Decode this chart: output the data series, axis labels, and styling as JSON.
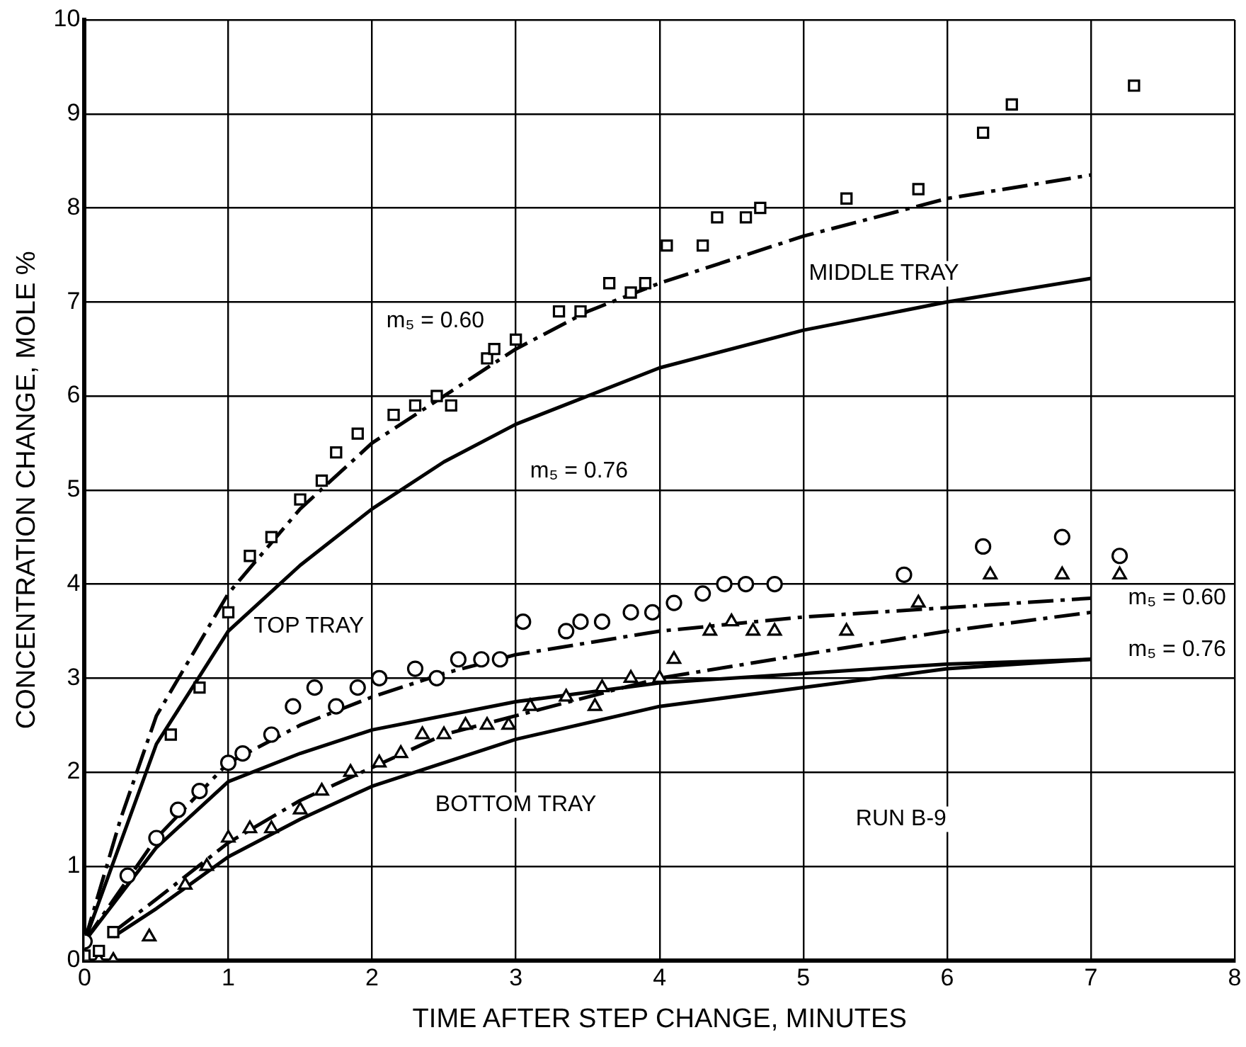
{
  "chart_data": {
    "type": "scatter",
    "xlabel": "TIME AFTER STEP CHANGE, MINUTES",
    "ylabel": "CONCENTRATION CHANGE, MOLE %",
    "xlim": [
      0,
      8
    ],
    "xticks": [
      0,
      1,
      2,
      3,
      4,
      5,
      6,
      7,
      8
    ],
    "ylim": [
      0,
      10
    ],
    "yticks": [
      0,
      1,
      2,
      3,
      4,
      5,
      6,
      7,
      8,
      9,
      10
    ],
    "grid": true,
    "legend": false,
    "series": [
      {
        "marker": "square",
        "color": "#000000",
        "x": [
          0.0,
          0.1,
          0.2,
          0.6,
          0.8,
          1.0,
          1.15,
          1.3,
          1.5,
          1.65,
          1.75,
          1.9,
          2.15,
          2.3,
          2.45,
          2.55,
          2.8,
          2.85,
          3.0,
          3.3,
          3.45,
          3.65,
          3.8,
          3.9,
          4.05,
          4.3,
          4.4,
          4.6,
          4.7,
          5.3,
          5.8,
          6.25,
          6.45,
          7.3
        ],
        "values": [
          0.05,
          0.1,
          0.3,
          2.4,
          2.9,
          3.7,
          4.3,
          4.5,
          4.9,
          5.1,
          5.4,
          5.6,
          5.8,
          5.9,
          6.0,
          5.9,
          6.4,
          6.5,
          6.6,
          6.9,
          6.9,
          7.2,
          7.1,
          7.2,
          7.6,
          7.6,
          7.9,
          7.9,
          8.0,
          8.1,
          8.2,
          8.8,
          9.1,
          9.3
        ]
      },
      {
        "marker": "circle",
        "color": "#000000",
        "x": [
          0.0,
          0.3,
          0.5,
          0.65,
          0.8,
          1.0,
          1.1,
          1.3,
          1.45,
          1.6,
          1.75,
          1.9,
          2.05,
          2.3,
          2.45,
          2.6,
          2.76,
          2.89,
          3.05,
          3.35,
          3.45,
          3.6,
          3.8,
          3.95,
          4.1,
          4.3,
          4.45,
          4.6,
          4.8,
          5.7,
          6.25,
          6.8,
          7.2
        ],
        "values": [
          0.2,
          0.9,
          1.3,
          1.6,
          1.8,
          2.1,
          2.2,
          2.4,
          2.7,
          2.9,
          2.7,
          2.9,
          3.0,
          3.1,
          3.0,
          3.2,
          3.2,
          3.2,
          3.6,
          3.5,
          3.6,
          3.6,
          3.7,
          3.7,
          3.8,
          3.9,
          4.0,
          4.0,
          4.0,
          4.1,
          4.4,
          4.5,
          4.3
        ]
      },
      {
        "marker": "triangle",
        "color": "#000000",
        "x": [
          0.1,
          0.2,
          0.45,
          0.7,
          0.85,
          1.0,
          1.15,
          1.3,
          1.5,
          1.65,
          1.85,
          2.05,
          2.2,
          2.35,
          2.5,
          2.65,
          2.8,
          2.95,
          3.1,
          3.35,
          3.55,
          3.6,
          3.8,
          4.0,
          4.1,
          4.35,
          4.5,
          4.65,
          4.8,
          5.3,
          5.8,
          6.3,
          6.8,
          7.2
        ],
        "values": [
          0.0,
          0.0,
          0.25,
          0.8,
          1.0,
          1.3,
          1.4,
          1.4,
          1.6,
          1.8,
          2.0,
          2.1,
          2.2,
          2.4,
          2.4,
          2.5,
          2.5,
          2.5,
          2.7,
          2.8,
          2.7,
          2.9,
          3.0,
          3.0,
          3.2,
          3.5,
          3.6,
          3.5,
          3.5,
          3.5,
          3.8,
          4.1,
          4.1,
          4.1
        ]
      },
      {
        "type": "line",
        "marker": "none",
        "line_style": "dashed",
        "color": "#000000",
        "x": [
          0,
          0.25,
          0.5,
          1,
          1.5,
          2,
          2.5,
          3,
          3.5,
          4,
          5,
          6,
          7
        ],
        "values": [
          0.2,
          1.5,
          2.6,
          3.9,
          4.8,
          5.5,
          6.0,
          6.5,
          6.9,
          7.2,
          7.7,
          8.1,
          8.35
        ]
      },
      {
        "type": "line",
        "marker": "none",
        "line_style": "solid",
        "color": "#000000",
        "x": [
          0,
          0.5,
          1,
          1.5,
          2,
          2.5,
          3,
          4,
          5,
          6,
          7
        ],
        "values": [
          0.2,
          2.3,
          3.5,
          4.2,
          4.8,
          5.3,
          5.7,
          6.3,
          6.7,
          7.0,
          7.25
        ]
      },
      {
        "type": "line",
        "marker": "none",
        "line_style": "dashed",
        "color": "#000000",
        "x": [
          0,
          0.5,
          1,
          1.5,
          2,
          2.5,
          3,
          4,
          5,
          6,
          7
        ],
        "values": [
          0.2,
          1.3,
          2.1,
          2.5,
          2.8,
          3.05,
          3.25,
          3.5,
          3.65,
          3.75,
          3.85
        ]
      },
      {
        "type": "line",
        "marker": "none",
        "line_style": "solid",
        "color": "#000000",
        "x": [
          0,
          0.5,
          1,
          1.5,
          2,
          3,
          4,
          5,
          6,
          7
        ],
        "values": [
          0.2,
          1.2,
          1.9,
          2.2,
          2.45,
          2.75,
          2.95,
          3.05,
          3.15,
          3.2
        ]
      },
      {
        "type": "line",
        "marker": "none",
        "line_style": "dashed",
        "color": "#000000",
        "x": [
          0.2,
          0.5,
          1,
          1.5,
          2,
          2.5,
          3,
          4,
          5,
          6,
          7
        ],
        "values": [
          0.3,
          0.65,
          1.25,
          1.7,
          2.05,
          2.4,
          2.6,
          3.0,
          3.25,
          3.5,
          3.7
        ]
      },
      {
        "type": "line",
        "marker": "none",
        "line_style": "solid",
        "color": "#000000",
        "x": [
          0.2,
          0.5,
          1,
          1.5,
          2,
          3,
          4,
          5,
          6,
          7
        ],
        "values": [
          0.25,
          0.55,
          1.1,
          1.5,
          1.85,
          2.35,
          2.7,
          2.9,
          3.1,
          3.2
        ]
      }
    ],
    "annotations": [
      "MIDDLE TRAY",
      "m₅ = 0.60",
      "m₅ = 0.76",
      "TOP TRAY",
      "BOTTOM TRAY",
      "m₅ = 0.60",
      "m₅ = 0.76",
      "RUN B-9"
    ]
  }
}
